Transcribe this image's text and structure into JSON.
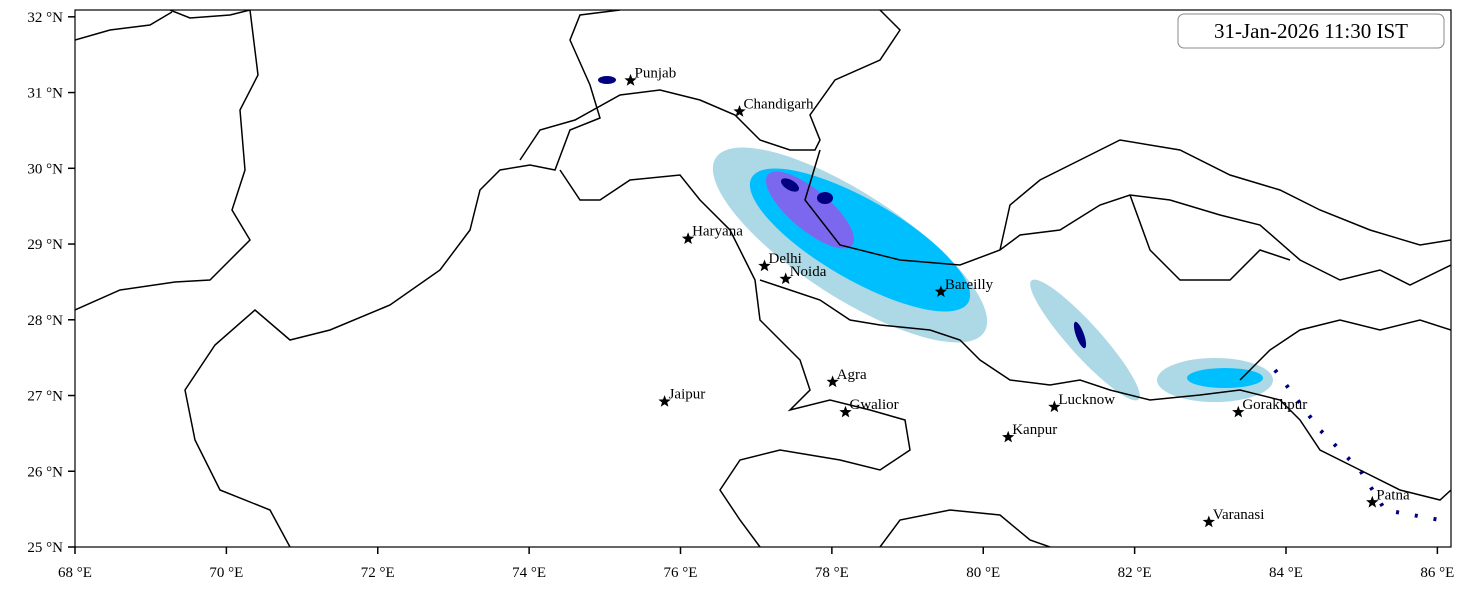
{
  "map": {
    "title": "31-Jan-2026 11:30 IST",
    "xlim": [
      68,
      86.18
    ],
    "ylim": [
      25,
      32.09
    ],
    "xticks": [
      {
        "value": 68,
        "label": "68 °E"
      },
      {
        "value": 70,
        "label": "70 °E"
      },
      {
        "value": 72,
        "label": "72 °E"
      },
      {
        "value": 74,
        "label": "74 °E"
      },
      {
        "value": 76,
        "label": "76 °E"
      },
      {
        "value": 78,
        "label": "78 °E"
      },
      {
        "value": 80,
        "label": "80 °E"
      },
      {
        "value": 82,
        "label": "82 °E"
      },
      {
        "value": 84,
        "label": "84 °E"
      },
      {
        "value": 86,
        "label": "86 °E"
      }
    ],
    "yticks": [
      {
        "value": 25,
        "label": "25 °N"
      },
      {
        "value": 26,
        "label": "26 °N"
      },
      {
        "value": 27,
        "label": "27 °N"
      },
      {
        "value": 28,
        "label": "28 °N"
      },
      {
        "value": 29,
        "label": "29 °N"
      },
      {
        "value": 30,
        "label": "30 °N"
      },
      {
        "value": 31,
        "label": "31 °N"
      },
      {
        "value": 32,
        "label": "32 °N"
      }
    ],
    "cities": [
      {
        "name": "Punjab",
        "lon": 75.34,
        "lat": 31.16
      },
      {
        "name": "Chandigarh",
        "lon": 76.78,
        "lat": 30.75
      },
      {
        "name": "Haryana",
        "lon": 76.1,
        "lat": 29.07
      },
      {
        "name": "Delhi",
        "lon": 77.11,
        "lat": 28.71
      },
      {
        "name": "Noida",
        "lon": 77.39,
        "lat": 28.54
      },
      {
        "name": "Bareilly",
        "lon": 79.44,
        "lat": 28.37
      },
      {
        "name": "Agra",
        "lon": 78.01,
        "lat": 27.18
      },
      {
        "name": "Jaipur",
        "lon": 75.79,
        "lat": 26.92
      },
      {
        "name": "Gwalior",
        "lon": 78.18,
        "lat": 26.78
      },
      {
        "name": "Lucknow",
        "lon": 80.94,
        "lat": 26.85
      },
      {
        "name": "Kanpur",
        "lon": 80.33,
        "lat": 26.45
      },
      {
        "name": "Gorakhpur",
        "lon": 83.37,
        "lat": 26.78
      },
      {
        "name": "Varanasi",
        "lon": 82.98,
        "lat": 25.33
      },
      {
        "name": "Patna",
        "lon": 85.14,
        "lat": 25.59
      }
    ]
  }
}
